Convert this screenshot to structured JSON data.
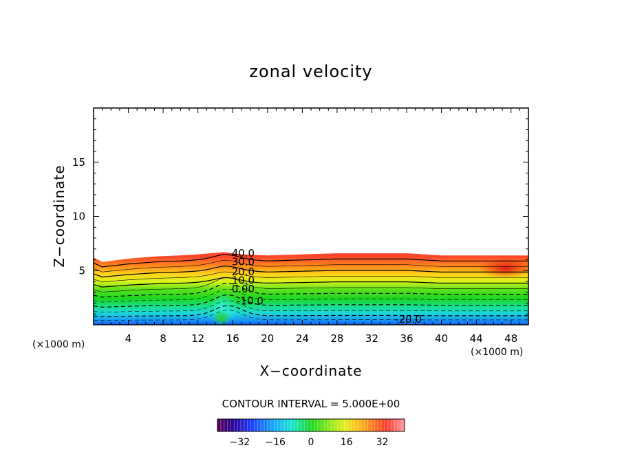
{
  "chart_data": {
    "type": "contour",
    "title": "zonal velocity",
    "xlabel": "X−coordinate",
    "ylabel": "Z−coordinate",
    "x_unit_left": "(×1000 m)",
    "x_unit_right": "(×1000 m)",
    "xlim": [
      0,
      50
    ],
    "ylim": [
      0,
      20
    ],
    "x_ticks": [
      4,
      8,
      12,
      16,
      20,
      24,
      28,
      32,
      36,
      40,
      44,
      48
    ],
    "y_ticks": [
      5,
      10,
      15
    ],
    "contour_interval_text": "CONTOUR INTERVAL = 5.000E+00",
    "contour_labels": [
      {
        "text": "40.0",
        "x": 17.2,
        "z": 6.6
      },
      {
        "text": "30.0",
        "x": 17.2,
        "z": 5.8
      },
      {
        "text": "20.0",
        "x": 17.2,
        "z": 4.9
      },
      {
        "text": "10.0",
        "x": 17.2,
        "z": 4.1
      },
      {
        "text": "0.00",
        "x": 17.2,
        "z": 3.3
      },
      {
        "text": "-10.0",
        "x": 18.0,
        "z": 2.2
      },
      {
        "text": "-20.0",
        "x": 36.2,
        "z": 0.5
      }
    ],
    "colorbar": {
      "min": -42,
      "max": 42,
      "ticks": [
        "−32",
        "−16",
        "0",
        "16",
        "32"
      ],
      "tick_values": [
        -32,
        -16,
        0,
        16,
        32
      ]
    },
    "field_top_z": [
      6.2,
      5.8,
      5.9,
      6.1,
      6.3,
      6.4,
      6.5,
      6.7,
      6.5,
      6.4,
      6.5,
      6.6,
      6.6,
      6.6,
      6.5,
      6.4,
      6.4,
      6.4,
      6.4,
      6.4
    ],
    "field_top_x": [
      0,
      1,
      2,
      4,
      7,
      10,
      12,
      15,
      17,
      20,
      24,
      28,
      32,
      36,
      38,
      40,
      44,
      46,
      48,
      50
    ],
    "legend": "none",
    "grid": false
  }
}
